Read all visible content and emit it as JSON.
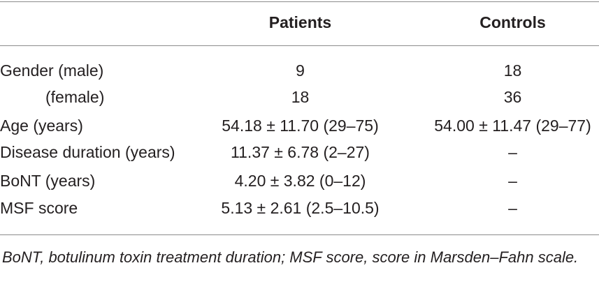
{
  "table": {
    "headers": [
      "",
      "Patients",
      "Controls"
    ],
    "rows": [
      {
        "label": "Gender (male)",
        "patients": "9",
        "controls": "18"
      },
      {
        "label": "(female)",
        "patients": "18",
        "controls": "36"
      },
      {
        "label": "Age (years)",
        "patients": "54.18 ± 11.70 (29–75)",
        "controls": "54.00 ± 11.47 (29–77)"
      },
      {
        "label": "Disease duration (years)",
        "patients": "11.37 ± 6.78 (2–27)",
        "controls": "–"
      },
      {
        "label": "BoNT (years)",
        "patients": "4.20 ± 3.82 (0–12)",
        "controls": "–"
      },
      {
        "label": "MSF score",
        "patients": "5.13 ± 2.61 (2.5–10.5)",
        "controls": "–"
      }
    ]
  },
  "footnote": "BoNT, botulinum toxin treatment duration; MSF score, score in Marsden–Fahn scale."
}
